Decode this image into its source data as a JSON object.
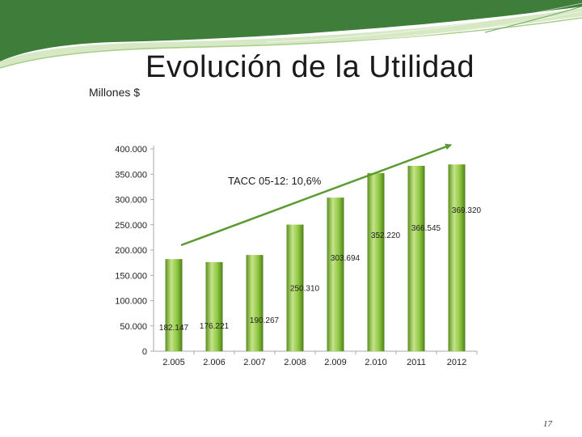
{
  "slide": {
    "title": "Evolución de la Utilidad",
    "units_label": "Millones $",
    "page_number": "17"
  },
  "colors": {
    "bar_light": "#c6e48a",
    "bar_mid": "#8cc63f",
    "bar_dark": "#5a8f1e",
    "trend_arrow": "#5a9a32",
    "header_green": "#3f7e3a",
    "header_pale": "#d6e8c4"
  },
  "chart_data": {
    "type": "bar",
    "categories": [
      "2.005",
      "2.006",
      "2.007",
      "2.008",
      "2.009",
      "2.010",
      "2011",
      "2012"
    ],
    "values": [
      182147,
      176221,
      190267,
      250310,
      303694,
      352220,
      366545,
      369320
    ],
    "value_labels": [
      "182.147",
      "176.221",
      "190.267",
      "250.310",
      "303.694",
      "352.220",
      "366.545",
      "369.320"
    ],
    "yticks": [
      "0",
      "50.000",
      "100.000",
      "150.000",
      "200.000",
      "250.000",
      "300.000",
      "350.000",
      "400.000"
    ],
    "ylim": [
      0,
      400000
    ],
    "annotation": "TACC 05-12: 10,6%",
    "grid": false,
    "legend": "none"
  }
}
